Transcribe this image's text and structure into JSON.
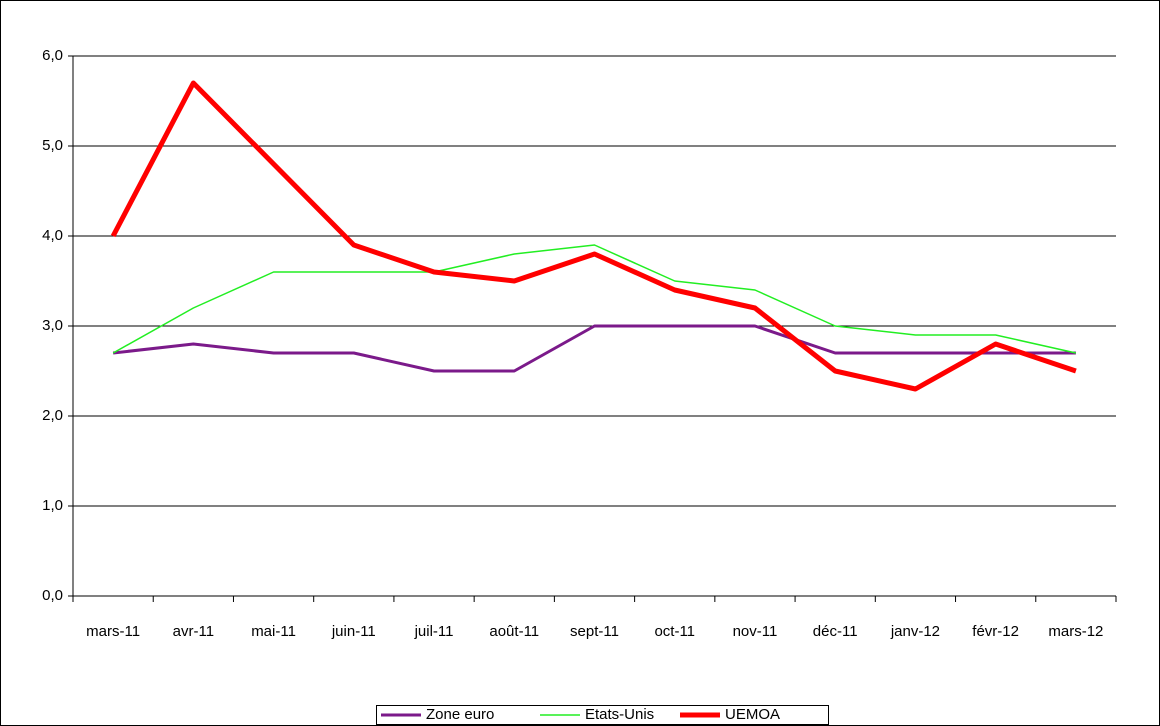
{
  "chart_data": {
    "type": "line",
    "categories": [
      "mars-11",
      "avr-11",
      "mai-11",
      "juin-11",
      "juil-11",
      "août-11",
      "sept-11",
      "oct-11",
      "nov-11",
      "déc-11",
      "janv-12",
      "févr-12",
      "mars-12"
    ],
    "series": [
      {
        "name": "Zone euro",
        "color": "#7b1a8a",
        "values": [
          2.7,
          2.8,
          2.7,
          2.7,
          2.5,
          2.5,
          3.0,
          3.0,
          3.0,
          2.7,
          2.7,
          2.7,
          2.7
        ]
      },
      {
        "name": "Etats-Unis",
        "color": "#22ee22",
        "values": [
          2.7,
          3.2,
          3.6,
          3.6,
          3.6,
          3.8,
          3.9,
          3.5,
          3.4,
          3.0,
          2.9,
          2.9,
          2.7
        ]
      },
      {
        "name": "UEMOA",
        "color": "#ff0000",
        "values": [
          4.0,
          5.7,
          4.8,
          3.9,
          3.6,
          3.5,
          3.8,
          3.4,
          3.2,
          2.5,
          2.3,
          2.8,
          2.5
        ]
      }
    ],
    "ylim": [
      0,
      6
    ],
    "yticks": [
      {
        "value": 0,
        "label": "0,0"
      },
      {
        "value": 1,
        "label": "1,0"
      },
      {
        "value": 2,
        "label": "2,0"
      },
      {
        "value": 3,
        "label": "3,0"
      },
      {
        "value": 4,
        "label": "4,0"
      },
      {
        "value": 5,
        "label": "5,0"
      },
      {
        "value": 6,
        "label": "6,0"
      }
    ],
    "grid": true,
    "legend": "bottom"
  }
}
